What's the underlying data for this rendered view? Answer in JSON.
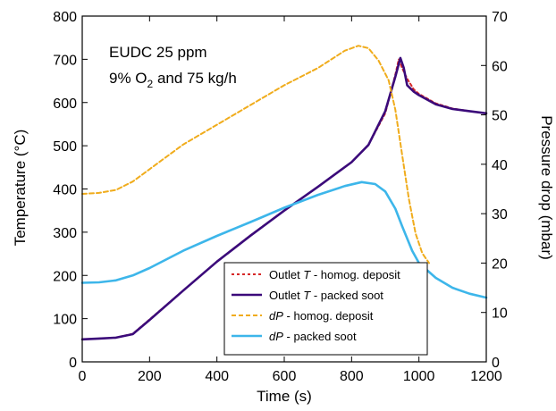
{
  "chart_data": {
    "type": "line",
    "annotation": {
      "line1": "EUDC 25 ppm",
      "line2_prefix": "9% O",
      "line2_sub": "2",
      "line2_suffix": " and 75 kg/h"
    },
    "xlabel": "Time (s)",
    "ylabel_left": "Temperature (°C)",
    "ylabel_right": "Pressure drop (mbar)",
    "xlim": [
      0,
      1200
    ],
    "ylim_left": [
      0,
      800
    ],
    "ylim_right": [
      0,
      70
    ],
    "xticks": [
      0,
      200,
      400,
      600,
      800,
      1000,
      1200
    ],
    "yticks_left": [
      0,
      100,
      200,
      300,
      400,
      500,
      600,
      700,
      800
    ],
    "yticks_right": [
      0,
      10,
      20,
      30,
      40,
      50,
      60,
      70
    ],
    "grid": false,
    "legend_position": "bottom-center",
    "series": [
      {
        "name": "Outlet T - homog. deposit",
        "legend_italic": "T",
        "legend_pre": "Outlet ",
        "legend_post": " - homog. deposit",
        "axis": "left",
        "color": "#d62828",
        "dash": "dotted",
        "x": [
          0,
          50,
          100,
          150,
          200,
          300,
          400,
          500,
          600,
          700,
          800,
          850,
          900,
          930,
          940,
          950,
          965,
          985,
          1000,
          1050,
          1100,
          1150,
          1200
        ],
        "y": [
          52,
          54,
          56,
          65,
          98,
          165,
          232,
          293,
          350,
          405,
          462,
          502,
          575,
          665,
          700,
          680,
          655,
          630,
          620,
          598,
          586,
          580,
          575
        ]
      },
      {
        "name": "Outlet T - packed soot",
        "legend_italic": "T",
        "legend_pre": "Outlet ",
        "legend_post": " - packed soot",
        "axis": "left",
        "color": "#3b0a7a",
        "dash": "solid",
        "x": [
          0,
          50,
          100,
          150,
          200,
          300,
          400,
          500,
          600,
          700,
          800,
          850,
          900,
          930,
          945,
          955,
          965,
          985,
          1000,
          1050,
          1100,
          1150,
          1200
        ],
        "y": [
          52,
          54,
          56,
          64,
          97,
          165,
          232,
          292,
          350,
          405,
          462,
          502,
          580,
          660,
          703,
          680,
          640,
          625,
          617,
          596,
          585,
          580,
          575
        ]
      },
      {
        "name": "dP - homog. deposit",
        "legend_italic": "dP",
        "legend_pre": "",
        "legend_post": " - homog. deposit",
        "axis": "right",
        "color": "#f0ac1c",
        "dash": "dashed",
        "x": [
          0,
          50,
          100,
          150,
          200,
          300,
          400,
          500,
          600,
          700,
          780,
          820,
          850,
          880,
          910,
          930,
          950,
          970,
          990,
          1010,
          1030
        ],
        "y": [
          34,
          34.2,
          34.8,
          36.5,
          39,
          44,
          48,
          52,
          56,
          59.5,
          63,
          64,
          63.5,
          61,
          57,
          51,
          42,
          33,
          26,
          22,
          20
        ]
      },
      {
        "name": "dP - packed soot",
        "legend_italic": "dP",
        "legend_pre": "",
        "legend_post": " - packed soot",
        "axis": "right",
        "color": "#3db6ea",
        "dash": "solid",
        "x": [
          0,
          50,
          100,
          150,
          200,
          300,
          400,
          500,
          600,
          700,
          780,
          830,
          870,
          900,
          930,
          950,
          980,
          1000,
          1050,
          1100,
          1150,
          1200
        ],
        "y": [
          16,
          16.1,
          16.5,
          17.5,
          19,
          22.5,
          25.5,
          28.3,
          31.2,
          33.8,
          35.6,
          36.4,
          36,
          34.5,
          31,
          27.5,
          22.5,
          20,
          17,
          15,
          13.8,
          13
        ]
      }
    ]
  }
}
